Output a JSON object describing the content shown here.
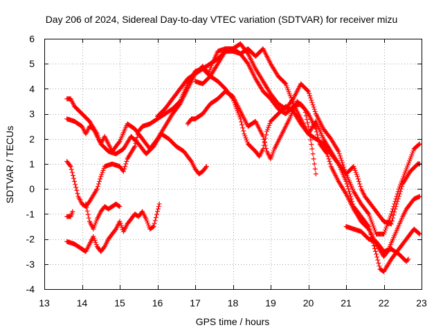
{
  "chart_data": {
    "type": "scatter",
    "title": "Day 206 of 2024, Sidereal Day-to-day VTEC variation (SDTVAR) for receiver mizu",
    "xlabel": "GPS time / hours",
    "ylabel": "SDTVAR / TECUs",
    "xlim": [
      13,
      23
    ],
    "ylim": [
      -4,
      6
    ],
    "xticks": [
      "13",
      "14",
      "15",
      "16",
      "17",
      "18",
      "19",
      "20",
      "21",
      "22",
      "23"
    ],
    "yticks": [
      "-4",
      "-3",
      "-2",
      "-1",
      "0",
      "1",
      "2",
      "3",
      "4",
      "5",
      "6"
    ],
    "grid": true,
    "marker": "plus",
    "colors": {
      "series": "#ff0000",
      "grid": "#a0a0a0"
    },
    "series": [
      {
        "points": [
          [
            13.6,
            3.6
          ],
          [
            13.7,
            3.6
          ],
          [
            13.8,
            3.3
          ],
          [
            14.0,
            3.0
          ],
          [
            14.2,
            2.7
          ],
          [
            14.4,
            2.2
          ],
          [
            14.5,
            1.8
          ],
          [
            14.7,
            1.5
          ],
          [
            14.9,
            1.4
          ],
          [
            15.1,
            1.6
          ],
          [
            15.3,
            2.1
          ],
          [
            15.5,
            1.8
          ],
          [
            15.7,
            1.4
          ],
          [
            15.9,
            1.7
          ],
          [
            16.1,
            2.2
          ],
          [
            16.3,
            2.0
          ],
          [
            16.5,
            1.7
          ],
          [
            16.7,
            1.5
          ],
          [
            16.9,
            1.1
          ],
          [
            17.0,
            0.8
          ],
          [
            17.1,
            0.6
          ],
          [
            17.2,
            0.7
          ],
          [
            17.3,
            0.9
          ]
        ]
      },
      {
        "points": [
          [
            13.6,
            2.8
          ],
          [
            13.8,
            2.7
          ],
          [
            14.0,
            2.5
          ],
          [
            14.1,
            2.2
          ],
          [
            14.2,
            2.5
          ],
          [
            14.3,
            2.4
          ],
          [
            14.5,
            1.8
          ],
          [
            14.6,
            2.1
          ],
          [
            14.8,
            1.5
          ],
          [
            15.0,
            1.9
          ],
          [
            15.2,
            2.6
          ],
          [
            15.4,
            2.4
          ],
          [
            15.6,
            2.0
          ],
          [
            15.8,
            1.6
          ],
          [
            16.0,
            2.0
          ],
          [
            16.2,
            2.5
          ],
          [
            16.4,
            3.0
          ],
          [
            16.6,
            3.4
          ],
          [
            16.8,
            4.0
          ],
          [
            17.0,
            4.6
          ],
          [
            17.2,
            4.9
          ],
          [
            17.35,
            4.6
          ],
          [
            17.45,
            5.0
          ],
          [
            17.6,
            5.5
          ],
          [
            17.8,
            5.6
          ],
          [
            18.0,
            5.6
          ],
          [
            18.2,
            5.4
          ],
          [
            18.4,
            5.0
          ],
          [
            18.6,
            4.4
          ],
          [
            18.8,
            3.9
          ],
          [
            19.0,
            3.6
          ],
          [
            19.2,
            3.2
          ],
          [
            19.4,
            3.0
          ],
          [
            19.6,
            3.3
          ],
          [
            19.8,
            3.4
          ],
          [
            20.0,
            3.0
          ],
          [
            20.2,
            2.4
          ],
          [
            20.3,
            1.8
          ],
          [
            20.5,
            1.4
          ],
          [
            20.6,
            0.9
          ],
          [
            20.8,
            0.3
          ],
          [
            21.0,
            -0.2
          ],
          [
            21.2,
            -0.8
          ],
          [
            21.4,
            -1.3
          ],
          [
            21.6,
            -1.6
          ],
          [
            21.8,
            -2.2
          ],
          [
            22.0,
            -2.7
          ],
          [
            22.1,
            -2.5
          ],
          [
            22.3,
            -1.8
          ],
          [
            22.5,
            -1.1
          ],
          [
            22.6,
            -0.8
          ],
          [
            22.8,
            -0.4
          ],
          [
            22.95,
            -0.3
          ]
        ]
      },
      {
        "points": [
          [
            13.6,
            -1.1
          ],
          [
            13.7,
            -1.1
          ],
          [
            13.75,
            -0.9
          ]
        ]
      },
      {
        "points": [
          [
            13.6,
            1.1
          ],
          [
            13.7,
            0.9
          ],
          [
            13.8,
            0.3
          ],
          [
            13.9,
            -0.3
          ],
          [
            14.0,
            -0.6
          ],
          [
            14.1,
            -0.7
          ],
          [
            14.2,
            -0.5
          ],
          [
            14.4,
            0.0
          ],
          [
            14.5,
            0.5
          ],
          [
            14.6,
            0.9
          ],
          [
            14.8,
            1.0
          ],
          [
            15.0,
            0.9
          ],
          [
            15.1,
            0.7
          ],
          [
            15.2,
            1.2
          ],
          [
            15.4,
            1.7
          ],
          [
            15.5,
            2.3
          ],
          [
            15.6,
            2.5
          ],
          [
            15.8,
            2.6
          ],
          [
            16.0,
            2.8
          ],
          [
            16.2,
            3.0
          ],
          [
            16.4,
            3.2
          ],
          [
            16.6,
            3.5
          ],
          [
            16.8,
            4.2
          ],
          [
            17.0,
            4.7
          ],
          [
            17.2,
            4.8
          ],
          [
            17.4,
            4.5
          ],
          [
            17.6,
            4.3
          ],
          [
            17.8,
            4.0
          ],
          [
            18.0,
            3.6
          ],
          [
            18.2,
            2.8
          ],
          [
            18.3,
            2.2
          ],
          [
            18.4,
            1.8
          ],
          [
            18.6,
            1.5
          ],
          [
            18.7,
            1.3
          ],
          [
            18.8,
            1.6
          ],
          [
            18.9,
            2.3
          ],
          [
            19.0,
            2.7
          ],
          [
            19.2,
            3.0
          ],
          [
            19.4,
            3.3
          ],
          [
            19.6,
            3.1
          ],
          [
            19.8,
            2.6
          ],
          [
            20.0,
            2.2
          ],
          [
            20.2,
            2.7
          ],
          [
            20.4,
            2.0
          ],
          [
            20.6,
            1.5
          ],
          [
            20.8,
            1.0
          ],
          [
            21.0,
            0.3
          ],
          [
            21.2,
            -0.7
          ],
          [
            21.4,
            -1.1
          ],
          [
            21.6,
            -1.5
          ],
          [
            21.8,
            -2.6
          ],
          [
            21.9,
            -3.2
          ],
          [
            22.0,
            -3.3
          ],
          [
            22.2,
            -2.8
          ],
          [
            22.4,
            -2.4
          ],
          [
            22.6,
            -2.0
          ],
          [
            22.8,
            -1.6
          ],
          [
            22.95,
            -1.8
          ]
        ]
      },
      {
        "points": [
          [
            13.6,
            -2.1
          ],
          [
            13.8,
            -2.2
          ],
          [
            13.9,
            -2.3
          ],
          [
            14.0,
            -2.4
          ],
          [
            14.1,
            -2.5
          ],
          [
            14.2,
            -2.2
          ],
          [
            14.3,
            -1.9
          ],
          [
            14.4,
            -2.3
          ],
          [
            14.5,
            -2.5
          ],
          [
            14.6,
            -2.3
          ],
          [
            14.7,
            -2.0
          ],
          [
            14.8,
            -1.8
          ],
          [
            14.9,
            -1.6
          ],
          [
            15.0,
            -1.3
          ],
          [
            15.1,
            -1.7
          ],
          [
            15.2,
            -1.4
          ],
          [
            15.3,
            -1.2
          ],
          [
            15.4,
            -1.0
          ],
          [
            15.5,
            -1.1
          ],
          [
            15.6,
            -0.9
          ],
          [
            15.7,
            -1.2
          ],
          [
            15.8,
            -1.6
          ],
          [
            15.9,
            -1.5
          ],
          [
            16.0,
            -0.9
          ],
          [
            16.05,
            -0.6
          ]
        ]
      },
      {
        "points": [
          [
            14.1,
            -0.6
          ],
          [
            14.2,
            -1.3
          ],
          [
            14.3,
            -1.6
          ],
          [
            14.4,
            -1.2
          ],
          [
            14.5,
            -0.9
          ],
          [
            14.6,
            -0.7
          ],
          [
            14.7,
            -0.8
          ],
          [
            14.8,
            -0.7
          ],
          [
            14.9,
            -0.6
          ],
          [
            15.0,
            -0.7
          ]
        ]
      },
      {
        "points": [
          [
            16.0,
            2.9
          ],
          [
            16.2,
            3.2
          ],
          [
            16.4,
            3.6
          ],
          [
            16.6,
            4.0
          ],
          [
            16.8,
            4.4
          ],
          [
            17.0,
            4.6
          ],
          [
            17.2,
            4.8
          ],
          [
            17.4,
            5.0
          ],
          [
            17.6,
            5.2
          ],
          [
            17.8,
            5.5
          ],
          [
            18.0,
            5.5
          ],
          [
            18.2,
            5.4
          ],
          [
            18.4,
            5.6
          ],
          [
            18.6,
            5.3
          ],
          [
            18.8,
            5.6
          ],
          [
            19.0,
            5.0
          ],
          [
            19.2,
            4.5
          ],
          [
            19.4,
            4.2
          ],
          [
            19.5,
            3.8
          ],
          [
            19.6,
            3.4
          ],
          [
            19.7,
            3.1
          ],
          [
            19.8,
            2.8
          ],
          [
            19.9,
            2.5
          ],
          [
            20.0,
            2.2
          ],
          [
            20.2,
            2.0
          ],
          [
            20.4,
            1.8
          ],
          [
            20.6,
            1.4
          ],
          [
            20.8,
            1.0
          ],
          [
            20.9,
            0.8
          ],
          [
            21.0,
            0.6
          ],
          [
            21.2,
            0.9
          ],
          [
            21.3,
            0.5
          ],
          [
            21.4,
            0.0
          ],
          [
            21.5,
            -0.3
          ],
          [
            21.6,
            -0.5
          ],
          [
            21.8,
            -0.9
          ],
          [
            22.0,
            -1.3
          ],
          [
            22.2,
            -1.4
          ],
          [
            22.3,
            -0.8
          ],
          [
            22.5,
            0.2
          ],
          [
            22.7,
            0.7
          ],
          [
            22.9,
            1.0
          ],
          [
            22.95,
            1.0
          ]
        ]
      },
      {
        "points": [
          [
            17.0,
            4.3
          ],
          [
            17.2,
            4.2
          ],
          [
            17.4,
            4.5
          ],
          [
            17.6,
            5.0
          ],
          [
            17.8,
            5.5
          ],
          [
            18.0,
            5.6
          ],
          [
            18.2,
            5.8
          ],
          [
            18.4,
            5.4
          ],
          [
            18.6,
            4.8
          ],
          [
            18.8,
            4.3
          ],
          [
            19.0,
            3.8
          ],
          [
            19.2,
            3.4
          ],
          [
            19.4,
            3.2
          ],
          [
            19.6,
            3.6
          ],
          [
            19.8,
            4.2
          ],
          [
            20.0,
            3.9
          ],
          [
            20.2,
            3.0
          ],
          [
            20.4,
            2.4
          ],
          [
            20.6,
            2.0
          ],
          [
            20.8,
            1.5
          ],
          [
            21.0,
            0.6
          ],
          [
            21.2,
            -0.1
          ],
          [
            21.4,
            -0.6
          ],
          [
            21.6,
            -1.0
          ],
          [
            21.8,
            -1.8
          ],
          [
            22.0,
            -1.8
          ],
          [
            22.2,
            -1.0
          ],
          [
            22.4,
            0.0
          ],
          [
            22.6,
            0.8
          ],
          [
            22.8,
            1.6
          ],
          [
            22.95,
            1.8
          ]
        ]
      },
      {
        "points": [
          [
            21.0,
            -1.5
          ],
          [
            21.2,
            -1.6
          ],
          [
            21.4,
            -1.7
          ],
          [
            21.6,
            -2.0
          ],
          [
            21.8,
            -2.1
          ],
          [
            22.0,
            -2.5
          ],
          [
            22.2,
            -2.4
          ],
          [
            22.4,
            -2.6
          ],
          [
            22.6,
            -2.9
          ],
          [
            22.65,
            -2.8
          ]
        ]
      },
      {
        "points": [
          [
            16.8,
            2.6
          ],
          [
            16.9,
            2.8
          ],
          [
            17.0,
            2.8
          ],
          [
            17.2,
            3.0
          ],
          [
            17.4,
            3.4
          ],
          [
            17.6,
            3.6
          ],
          [
            17.8,
            3.9
          ],
          [
            18.0,
            3.7
          ],
          [
            18.2,
            3.1
          ],
          [
            18.4,
            2.5
          ],
          [
            18.6,
            2.7
          ],
          [
            18.8,
            2.1
          ],
          [
            18.9,
            1.5
          ],
          [
            19.0,
            1.2
          ],
          [
            19.1,
            1.6
          ],
          [
            19.3,
            2.2
          ],
          [
            19.5,
            2.8
          ],
          [
            19.7,
            3.5
          ],
          [
            19.9,
            3.2
          ],
          [
            20.0,
            2.5
          ],
          [
            20.1,
            1.6
          ],
          [
            20.2,
            0.6
          ]
        ]
      }
    ]
  }
}
